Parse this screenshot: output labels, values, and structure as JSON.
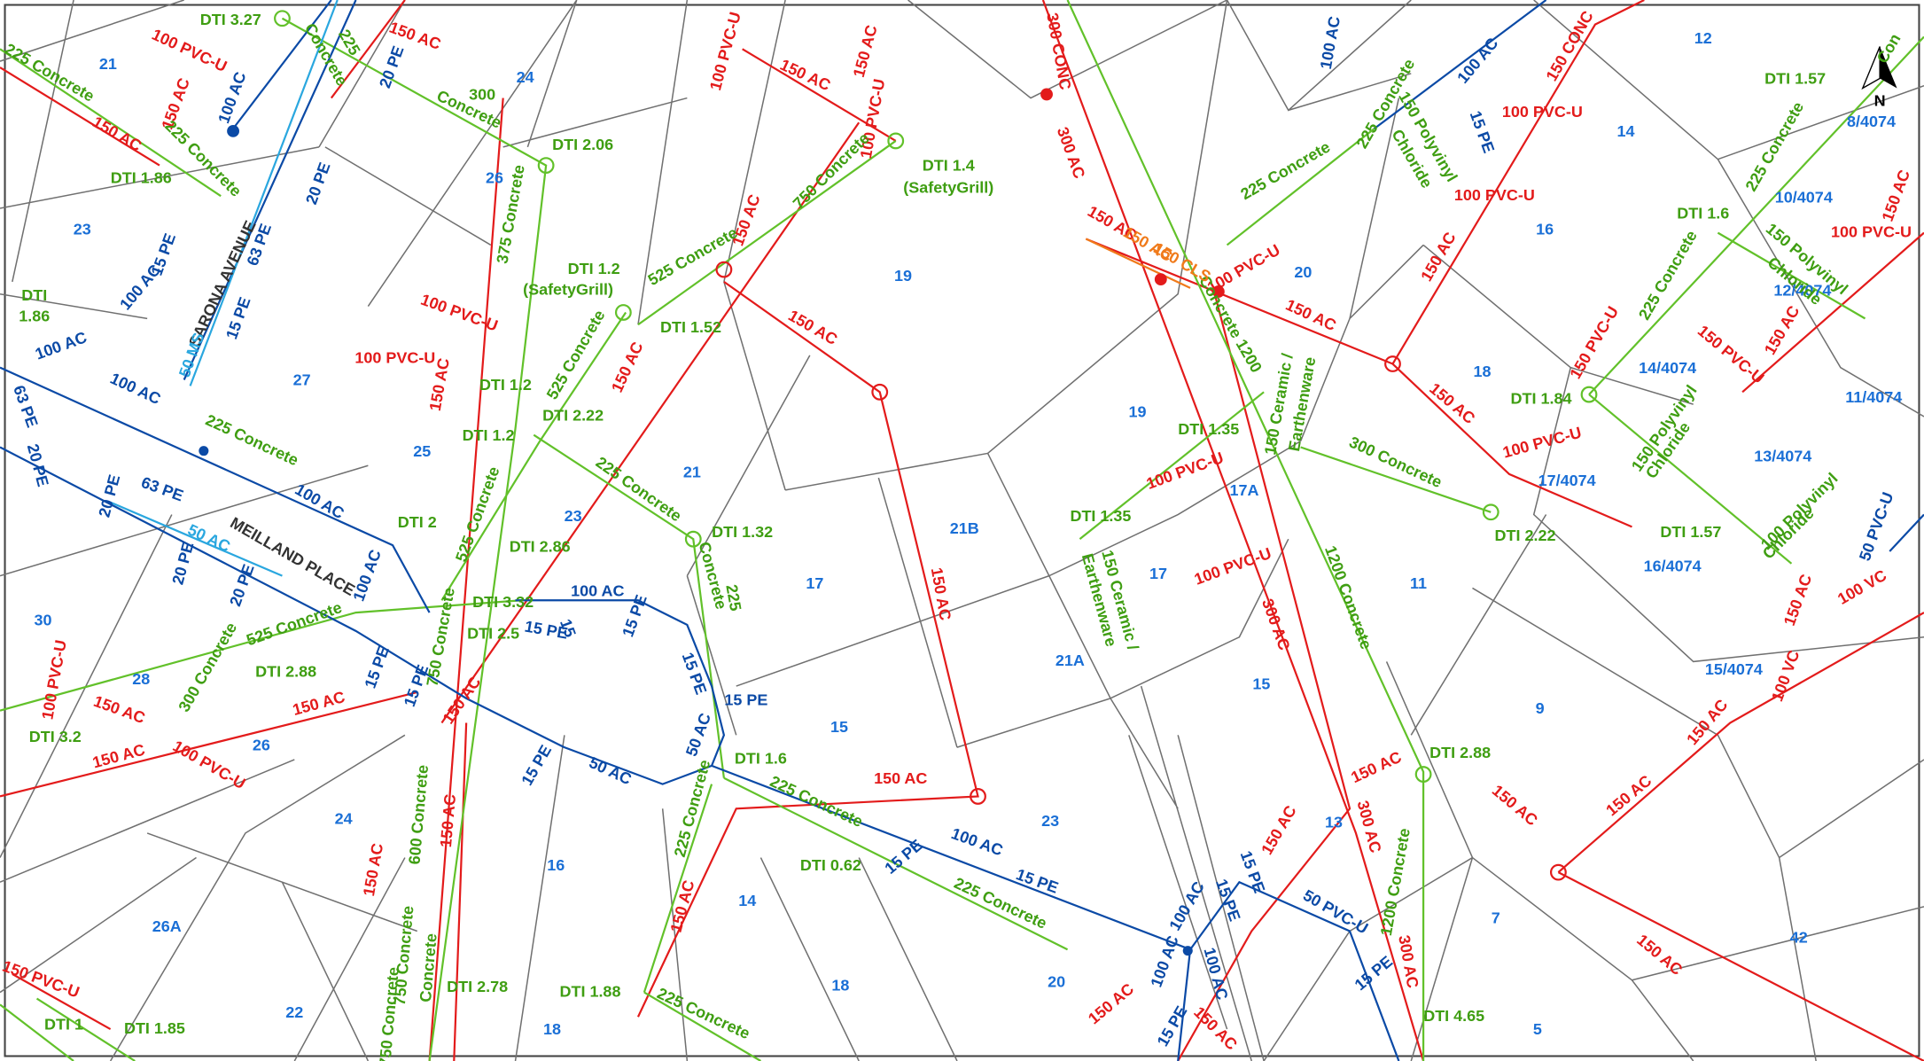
{
  "map": {
    "north": "N",
    "streets": [
      "SARONA AVENUE",
      "MEILLAND PLACE"
    ],
    "lots": [
      "21",
      "24",
      "23",
      "26",
      "27",
      "25",
      "19",
      "12",
      "14",
      "16",
      "20",
      "18",
      "19",
      "21",
      "23",
      "17A",
      "21B",
      "17",
      "17",
      "11",
      "11/4074",
      "13/4074",
      "16/4074",
      "15/4074",
      "8/4074",
      "10/4074",
      "12/4074",
      "14/4074",
      "17/4074",
      "30",
      "28",
      "26",
      "15",
      "21A",
      "15",
      "9",
      "24",
      "16",
      "23",
      "13",
      "26A",
      "14",
      "7",
      "42",
      "22",
      "18",
      "18",
      "20",
      "5"
    ],
    "red_labels": [
      "100 PVC-U",
      "150 AC",
      "150 AC",
      "150 AC",
      "100 PVC-U",
      "150 AC",
      "150 AC",
      "100 PVC-U",
      "300 CONC",
      "300 AC",
      "150 CONC",
      "100 PVC-U",
      "100 PVC-U",
      "150 AC",
      "150 AC",
      "100 PVC-U",
      "150 AC",
      "100 PVC-U",
      "100 PVC-U",
      "150 AC",
      "150 AC",
      "150 AC",
      "150 AC",
      "150 AC",
      "100 PVC-U",
      "150 PVC-U",
      "150 PVC-U",
      "150 AC",
      "150 AC",
      "100 PVC-U",
      "100 PVC-U",
      "100 PVC-U",
      "300 AC",
      "150 AC",
      "150 AC",
      "100 PVC-U",
      "150 AC",
      "150 AC",
      "150 AC",
      "100 PVC-U",
      "150 AC",
      "150 AC",
      "150 AC",
      "150 AC",
      "150 AC",
      "300 AC",
      "150 AC",
      "150 AC",
      "150 AC",
      "150 AC",
      "100 VC",
      "100 VC",
      "150 AC",
      "150 AC",
      "300 AC",
      "150 AC",
      "150 AC",
      "150 PVC-U"
    ],
    "green_labels": [
      "DTI 3.27",
      "225 Concrete",
      "Concrete",
      "225",
      "Concrete",
      "300",
      "DTI 2.06",
      "375 Concrete",
      "DTI 1.86",
      "225 Concrete",
      "DTI 1.4",
      "(SafetyGrill)",
      "750 Concrete",
      "525 Concrete",
      "DTI 1.2",
      "(SafetyGrill)",
      "DTI 1.52",
      "525 Concrete",
      "DTI 1.2",
      "DTI 1.2",
      "DTI 2.22",
      "225 Concrete",
      "DTI 2",
      "525 Concrete",
      "DTI 2.86",
      "225 Concrete",
      "DTI 1.32",
      "Concrete",
      "225",
      "DTI 3.32",
      "DTI 2.5",
      "750 Concrete",
      "525 Concrete",
      "300 Concrete",
      "DTI 2.88",
      "DTI 3.2",
      "DTI",
      "1.86",
      "225 Concrete",
      "225 Concrete",
      "150 Polyvinyl",
      "Chloride",
      "DTI 1.57",
      "225 Concrete",
      "DTI 1.6",
      "225 Concrete",
      "150 Polyvinyl",
      "Chloride",
      "DTI 1.84",
      "150 Polyvinyl",
      "Chloride",
      "DTI 1.57",
      "100 Polyvinyl",
      "Chloride",
      "Concrete 1200",
      "150 Ceramic /",
      "Earthenware",
      "DTI 1.35",
      "300 Concrete",
      "DTI 2.22",
      "DTI 1.35",
      "150 Ceramic /",
      "Earthenware",
      "1200 Concrete",
      "DTI 2.88",
      "DTI 1.6",
      "225 Concrete",
      "225 Concrete",
      "DTI 0.62",
      "225 Concrete",
      "1200 Concrete",
      "600 Concrete",
      "750 Concrete",
      "Concrete",
      "750 Concrete",
      "DTI 2.78",
      "DTI 1.88",
      "225 Concrete",
      "DTI 4.65",
      "DTI 1",
      "DTI 1.85",
      "Con"
    ],
    "orange_labels": [
      "150 AC",
      "150 CLS"
    ],
    "blue_labels": [
      "20 PE",
      "100 AC",
      "20 PE",
      "63 PE",
      "15 PE",
      "15 PE",
      "100 AC",
      "100 AC",
      "63 PE",
      "100 AC",
      "20 PE",
      "20 PE",
      "63 PE",
      "20 PE",
      "100 AC",
      "100 AC",
      "20 PE",
      "15 PE",
      "15 PE",
      "15 PE",
      "15",
      "100 AC",
      "15 PE",
      "15 PE",
      "15 PE",
      "50 AC",
      "15 PE",
      "50 AC",
      "15 PE",
      "100 AC",
      "15 PE",
      "100 AC",
      "15 PE",
      "15 PE",
      "50 PVC-U",
      "100 AC",
      "100 AC",
      "15 PE",
      "15 PE",
      "100 AC",
      "100 AC",
      "15 PE",
      "50 PVC-U"
    ],
    "cyan_labels": [
      "50 MS",
      "50 AC"
    ]
  }
}
